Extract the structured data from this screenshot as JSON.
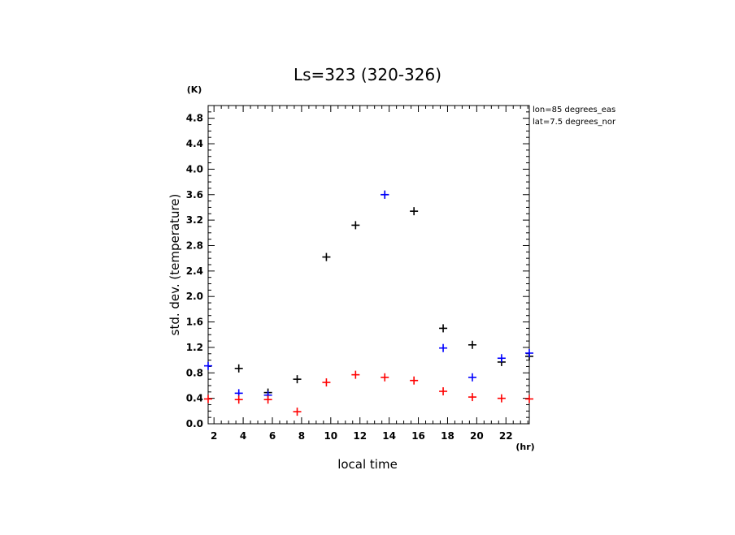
{
  "chart_data": {
    "type": "scatter",
    "title": "Ls=323 (320-326)",
    "xlabel": "local time",
    "ylabel": "std. dev. (temperature)",
    "x_unit": "(hr)",
    "y_unit": "(K)",
    "xlim": [
      1.6,
      23.6
    ],
    "ylim": [
      0.0,
      5.0
    ],
    "x_ticks": [
      2,
      4,
      6,
      8,
      10,
      12,
      14,
      16,
      18,
      20,
      22
    ],
    "y_ticks": [
      0.0,
      0.4,
      0.8,
      1.2,
      1.6,
      2.0,
      2.4,
      2.8,
      3.2,
      3.6,
      4.0,
      4.4,
      4.8
    ],
    "annotations": [
      "lon=85 degrees_eas",
      "lat=7.5 degrees_nor"
    ],
    "grid": false,
    "marker": "+",
    "series": [
      {
        "color": "#000000",
        "points": [
          {
            "x": 3.7,
            "y": 0.87
          },
          {
            "x": 5.7,
            "y": 0.49
          },
          {
            "x": 7.7,
            "y": 0.7
          },
          {
            "x": 9.7,
            "y": 2.62
          },
          {
            "x": 11.7,
            "y": 3.12
          },
          {
            "x": 13.7,
            "y": 3.6
          },
          {
            "x": 15.7,
            "y": 3.34
          },
          {
            "x": 17.7,
            "y": 1.5
          },
          {
            "x": 19.7,
            "y": 1.24
          },
          {
            "x": 21.7,
            "y": 0.97
          },
          {
            "x": 23.6,
            "y": 1.06
          }
        ]
      },
      {
        "color": "#0000ff",
        "points": [
          {
            "x": 1.6,
            "y": 0.91
          },
          {
            "x": 3.7,
            "y": 0.48
          },
          {
            "x": 5.7,
            "y": 0.45
          },
          {
            "x": 13.7,
            "y": 3.6
          },
          {
            "x": 17.7,
            "y": 1.19
          },
          {
            "x": 19.7,
            "y": 0.73
          },
          {
            "x": 21.7,
            "y": 1.03
          },
          {
            "x": 23.6,
            "y": 1.11
          }
        ]
      },
      {
        "color": "#ff0000",
        "points": [
          {
            "x": 1.6,
            "y": 0.39
          },
          {
            "x": 3.7,
            "y": 0.38
          },
          {
            "x": 5.7,
            "y": 0.38
          },
          {
            "x": 7.7,
            "y": 0.19
          },
          {
            "x": 9.7,
            "y": 0.65
          },
          {
            "x": 11.7,
            "y": 0.77
          },
          {
            "x": 13.7,
            "y": 0.73
          },
          {
            "x": 15.7,
            "y": 0.68
          },
          {
            "x": 17.7,
            "y": 0.51
          },
          {
            "x": 19.7,
            "y": 0.42
          },
          {
            "x": 21.7,
            "y": 0.4
          },
          {
            "x": 23.6,
            "y": 0.39
          }
        ]
      }
    ]
  }
}
